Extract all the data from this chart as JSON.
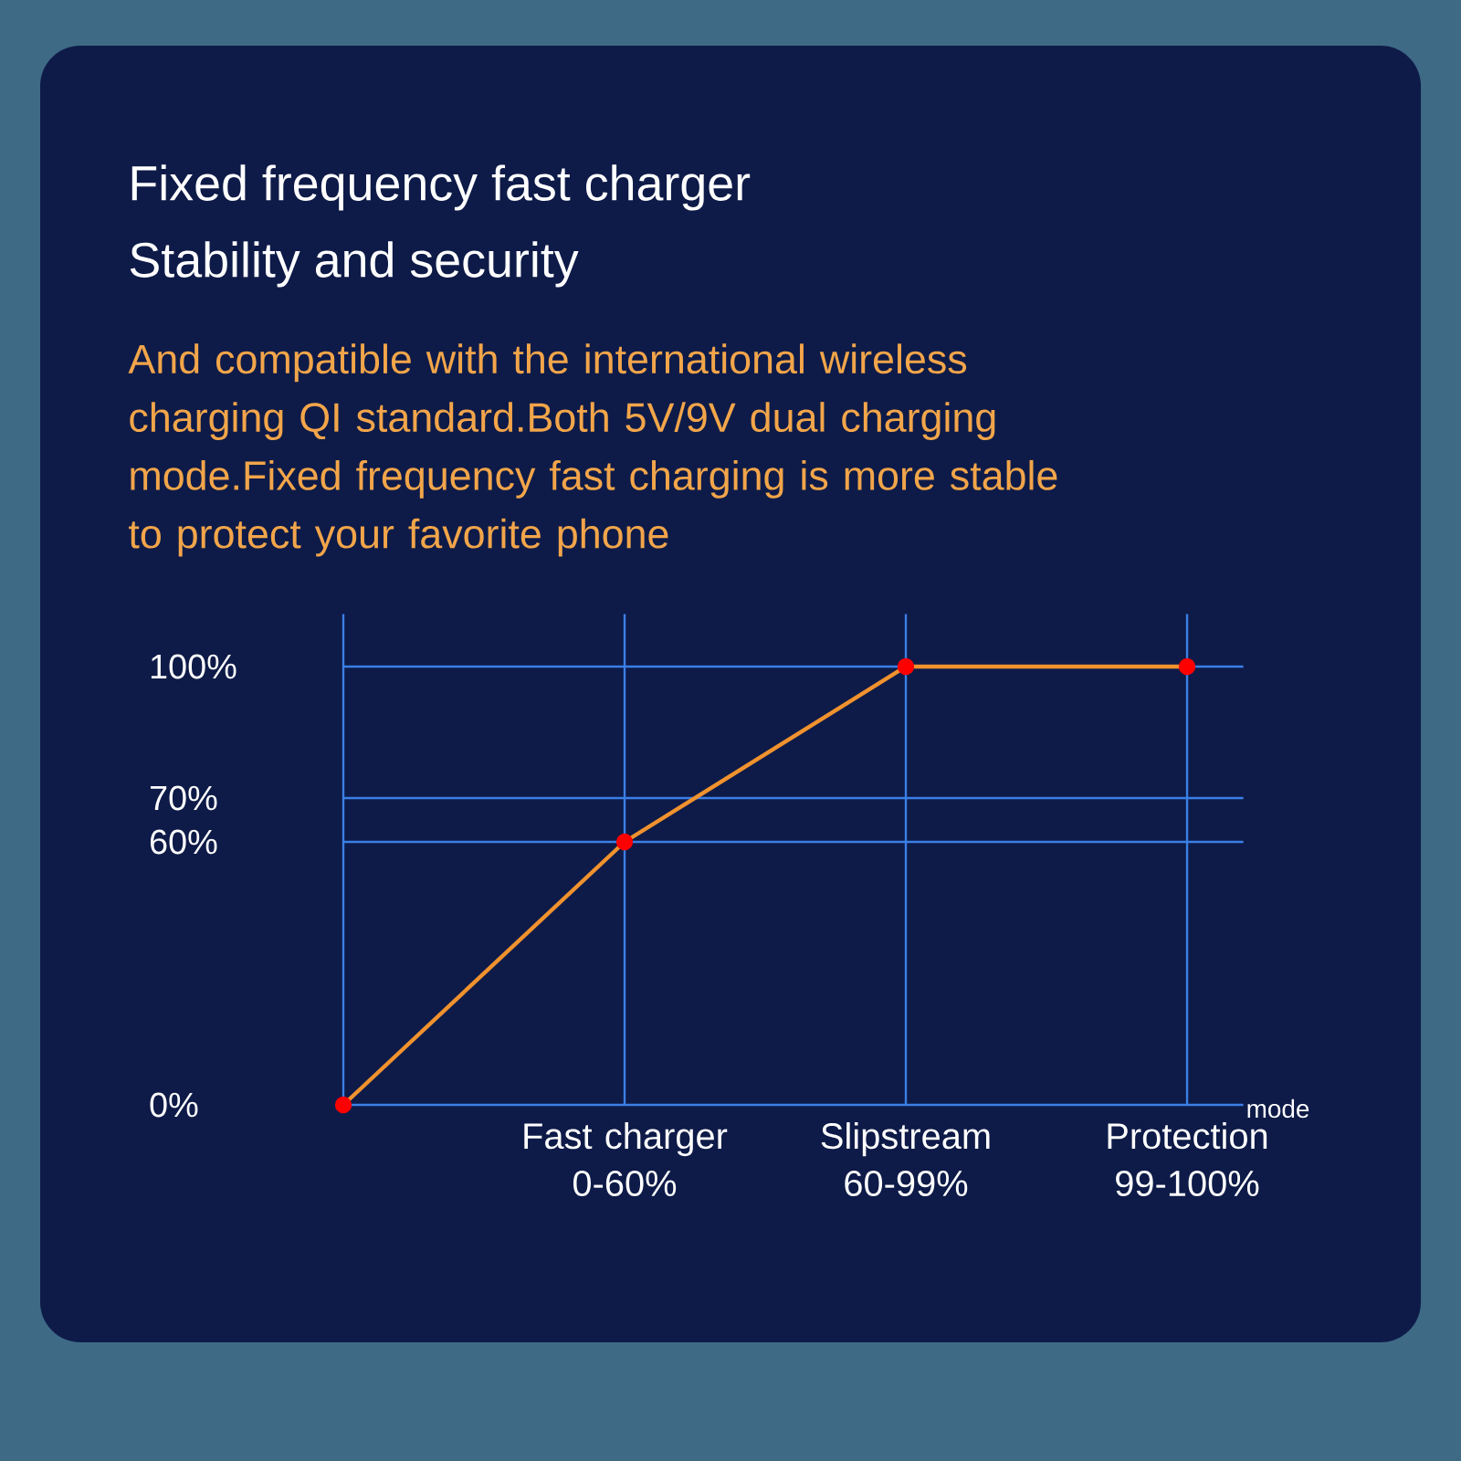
{
  "chart_data": {
    "type": "line",
    "title": "Fixed frequency fast charger",
    "subtitle": "Stability and security",
    "annotations": [
      "And compatible with the international wireless charging QI standard.Both 5V/9V dual charging mode.Fixed frequency fast charging is more stable to protect your favorite phone"
    ],
    "categories": [
      null,
      "Fast charger 0-60%",
      "Slipstream 60-99%",
      "Protection 99-100%"
    ],
    "values": [
      0,
      60,
      100,
      100
    ],
    "color": "#f0922e",
    "xlabel": "mode",
    "ylim": [
      0,
      100
    ],
    "yticks": [
      {
        "value": 0,
        "label": "0%"
      },
      {
        "value": 60,
        "label": "60%"
      },
      {
        "value": 70,
        "label": "70%"
      },
      {
        "value": 100,
        "label": "100%"
      }
    ],
    "grid": true,
    "marker": "circle"
  }
}
